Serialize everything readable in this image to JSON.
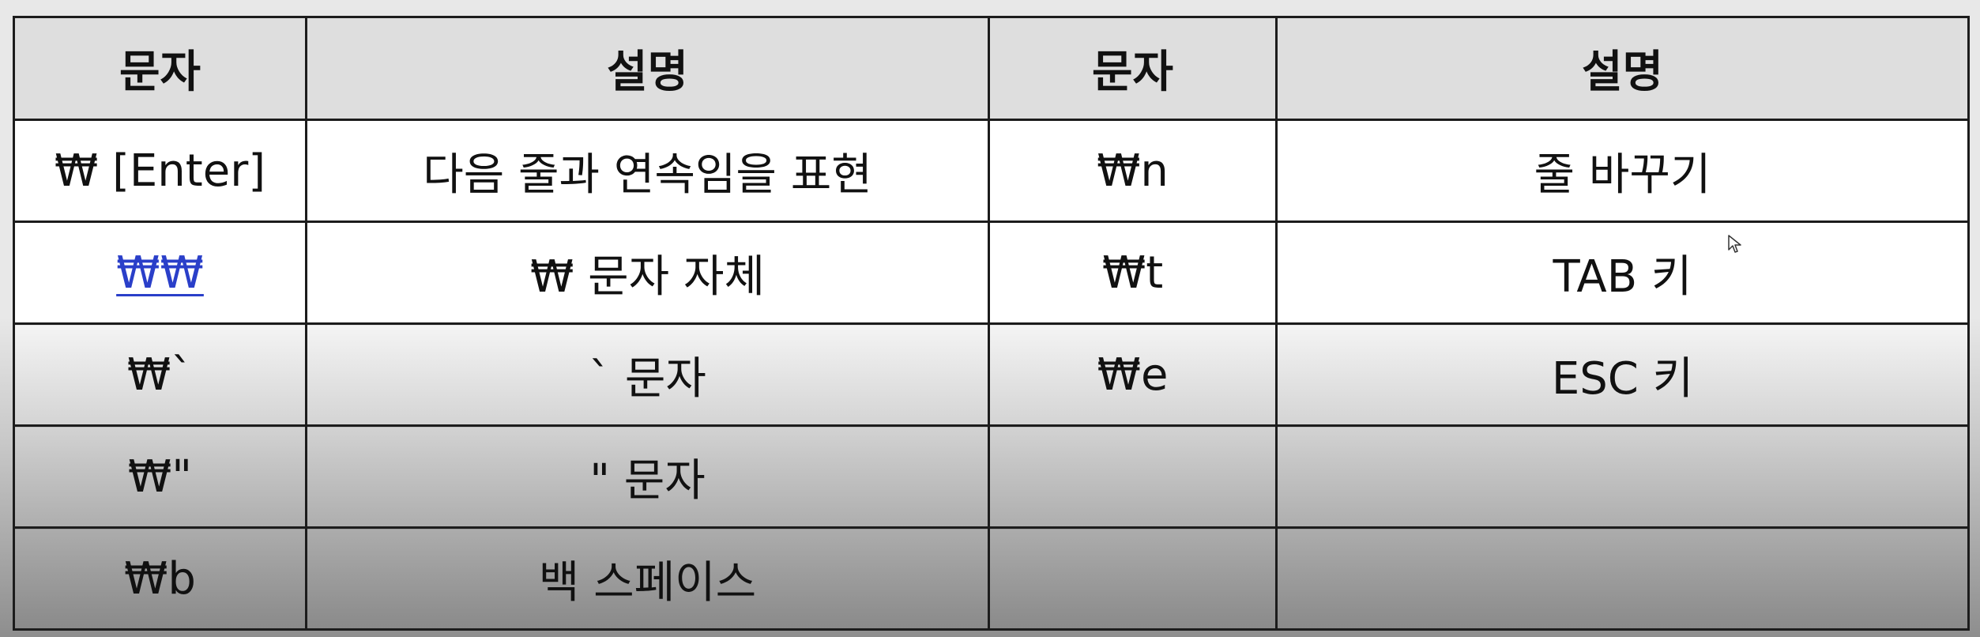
{
  "table": {
    "headers": [
      "문자",
      "설명",
      "문자",
      "설명"
    ],
    "rows": [
      [
        "₩ [Enter]",
        "다음 줄과 연속임을 표현",
        "₩n",
        "줄 바꾸기"
      ],
      [
        "₩₩",
        "₩ 문자 자체",
        "₩t",
        "TAB 키"
      ],
      [
        "₩`",
        "` 문자",
        "₩e",
        "ESC 키"
      ],
      [
        "₩\"",
        "\" 문자",
        "",
        ""
      ],
      [
        "₩b",
        "백 스페이스",
        "",
        ""
      ]
    ]
  },
  "colors": {
    "link": "#2a3fc9",
    "border": "#1c1c1c",
    "header_bg": "#dedede"
  }
}
